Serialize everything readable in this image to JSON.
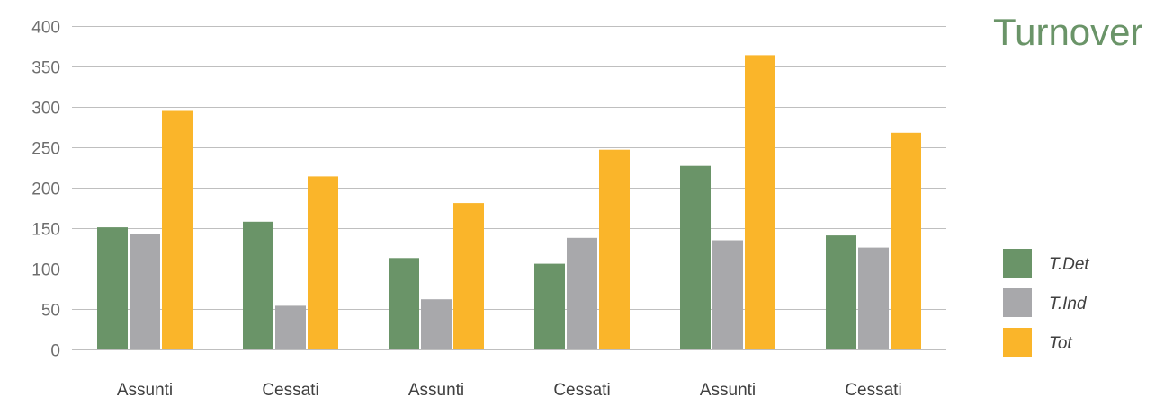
{
  "chart_data": {
    "type": "bar",
    "title": "Turnover",
    "categories": [
      "Assunti",
      "Cessati",
      "Assunti",
      "Cessati",
      "Assunti",
      "Cessati"
    ],
    "series": [
      {
        "name": "T.Det",
        "color": "#6a9468",
        "values": [
          151,
          158,
          113,
          106,
          227,
          141
        ]
      },
      {
        "name": "T.Ind",
        "color": "#a8a8ab",
        "values": [
          143,
          54,
          62,
          138,
          135,
          126
        ]
      },
      {
        "name": "Tot",
        "color": "#fab52a",
        "values": [
          295,
          214,
          181,
          247,
          364,
          268
        ]
      }
    ],
    "ylim": [
      0,
      400
    ],
    "yticks": [
      0,
      50,
      100,
      150,
      200,
      250,
      300,
      350,
      400
    ],
    "grid": true,
    "legend_position": "right",
    "colors": {
      "grid": "#bfbfbf",
      "title": "#6a9468",
      "tick_text": "#6e6e6e",
      "label_text": "#404040"
    }
  }
}
